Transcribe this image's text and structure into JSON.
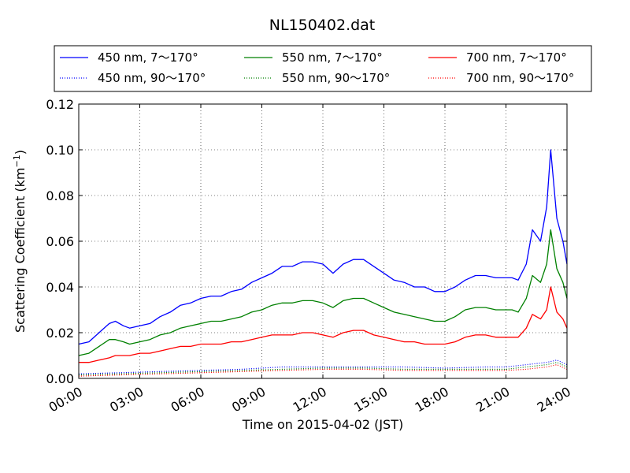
{
  "chart_data": {
    "type": "line",
    "title": "NL150402.dat",
    "xlabel": "Time on 2015-04-02 (JST)",
    "ylabel": "Scattering Coefficient (km",
    "ylabel_sup": "−1",
    "ylabel_end": ")",
    "xlim": [
      0,
      24
    ],
    "ylim": [
      0,
      0.12
    ],
    "x_unit": "hours",
    "x_ticks": [
      0,
      3,
      6,
      9,
      12,
      15,
      18,
      21,
      24
    ],
    "x_tick_labels": [
      "00:00",
      "03:00",
      "06:00",
      "09:00",
      "12:00",
      "15:00",
      "18:00",
      "21:00",
      "24:00"
    ],
    "y_ticks": [
      0,
      0.02,
      0.04,
      0.06,
      0.08,
      0.1,
      0.12
    ],
    "y_tick_labels": [
      "0.00",
      "0.02",
      "0.04",
      "0.06",
      "0.08",
      "0.10",
      "0.12"
    ],
    "grid": true,
    "legend_position": "top, above plot",
    "legend_columns": 3,
    "series": [
      {
        "name": "450 nm, 7～170°",
        "color": "#0000ff",
        "style": "solid",
        "x": [
          0,
          0.5,
          1,
          1.5,
          1.8,
          2.2,
          2.5,
          3,
          3.5,
          4,
          4.5,
          5,
          5.5,
          6,
          6.5,
          7,
          7.5,
          8,
          8.5,
          9,
          9.5,
          10,
          10.5,
          11,
          11.5,
          12,
          12.5,
          13,
          13.5,
          14,
          14.5,
          15,
          15.5,
          16,
          16.5,
          17,
          17.5,
          18,
          18.5,
          19,
          19.5,
          20,
          20.5,
          21,
          21.3,
          21.6,
          22,
          22.3,
          22.7,
          23,
          23.2,
          23.5,
          23.8,
          24
        ],
        "y": [
          0.015,
          0.016,
          0.02,
          0.024,
          0.025,
          0.023,
          0.022,
          0.023,
          0.024,
          0.027,
          0.029,
          0.032,
          0.033,
          0.035,
          0.036,
          0.036,
          0.038,
          0.039,
          0.042,
          0.044,
          0.046,
          0.049,
          0.049,
          0.051,
          0.051,
          0.05,
          0.046,
          0.05,
          0.052,
          0.052,
          0.049,
          0.046,
          0.043,
          0.042,
          0.04,
          0.04,
          0.038,
          0.038,
          0.04,
          0.043,
          0.045,
          0.045,
          0.044,
          0.044,
          0.044,
          0.043,
          0.05,
          0.065,
          0.06,
          0.075,
          0.1,
          0.07,
          0.06,
          0.05
        ]
      },
      {
        "name": "550 nm, 7～170°",
        "color": "#008000",
        "style": "solid",
        "x": [
          0,
          0.5,
          1,
          1.5,
          1.8,
          2.2,
          2.5,
          3,
          3.5,
          4,
          4.5,
          5,
          5.5,
          6,
          6.5,
          7,
          7.5,
          8,
          8.5,
          9,
          9.5,
          10,
          10.5,
          11,
          11.5,
          12,
          12.5,
          13,
          13.5,
          14,
          14.5,
          15,
          15.5,
          16,
          16.5,
          17,
          17.5,
          18,
          18.5,
          19,
          19.5,
          20,
          20.5,
          21,
          21.3,
          21.6,
          22,
          22.3,
          22.7,
          23,
          23.2,
          23.5,
          23.8,
          24
        ],
        "y": [
          0.01,
          0.011,
          0.014,
          0.017,
          0.017,
          0.016,
          0.015,
          0.016,
          0.017,
          0.019,
          0.02,
          0.022,
          0.023,
          0.024,
          0.025,
          0.025,
          0.026,
          0.027,
          0.029,
          0.03,
          0.032,
          0.033,
          0.033,
          0.034,
          0.034,
          0.033,
          0.031,
          0.034,
          0.035,
          0.035,
          0.033,
          0.031,
          0.029,
          0.028,
          0.027,
          0.026,
          0.025,
          0.025,
          0.027,
          0.03,
          0.031,
          0.031,
          0.03,
          0.03,
          0.03,
          0.029,
          0.035,
          0.045,
          0.042,
          0.05,
          0.065,
          0.048,
          0.042,
          0.035
        ]
      },
      {
        "name": "700 nm, 7～170°",
        "color": "#ff0000",
        "style": "solid",
        "x": [
          0,
          0.5,
          1,
          1.5,
          1.8,
          2.2,
          2.5,
          3,
          3.5,
          4,
          4.5,
          5,
          5.5,
          6,
          6.5,
          7,
          7.5,
          8,
          8.5,
          9,
          9.5,
          10,
          10.5,
          11,
          11.5,
          12,
          12.5,
          13,
          13.5,
          14,
          14.5,
          15,
          15.5,
          16,
          16.5,
          17,
          17.5,
          18,
          18.5,
          19,
          19.5,
          20,
          20.5,
          21,
          21.3,
          21.6,
          22,
          22.3,
          22.7,
          23,
          23.2,
          23.5,
          23.8,
          24
        ],
        "y": [
          0.007,
          0.007,
          0.008,
          0.009,
          0.01,
          0.01,
          0.01,
          0.011,
          0.011,
          0.012,
          0.013,
          0.014,
          0.014,
          0.015,
          0.015,
          0.015,
          0.016,
          0.016,
          0.017,
          0.018,
          0.019,
          0.019,
          0.019,
          0.02,
          0.02,
          0.019,
          0.018,
          0.02,
          0.021,
          0.021,
          0.019,
          0.018,
          0.017,
          0.016,
          0.016,
          0.015,
          0.015,
          0.015,
          0.016,
          0.018,
          0.019,
          0.019,
          0.018,
          0.018,
          0.018,
          0.018,
          0.022,
          0.028,
          0.026,
          0.03,
          0.04,
          0.029,
          0.026,
          0.022
        ]
      },
      {
        "name": "450 nm, 90～170°",
        "color": "#0000ff",
        "style": "dotted",
        "x": [
          0,
          2,
          4,
          6,
          8,
          10,
          12,
          14,
          16,
          18,
          20,
          21,
          22,
          23,
          23.5,
          24
        ],
        "y": [
          0.002,
          0.0025,
          0.003,
          0.0035,
          0.004,
          0.005,
          0.005,
          0.005,
          0.005,
          0.0045,
          0.005,
          0.005,
          0.006,
          0.007,
          0.008,
          0.006
        ]
      },
      {
        "name": "550 nm, 90～170°",
        "color": "#008000",
        "style": "dotted",
        "x": [
          0,
          2,
          4,
          6,
          8,
          10,
          12,
          14,
          16,
          18,
          20,
          21,
          22,
          23,
          23.5,
          24
        ],
        "y": [
          0.0015,
          0.002,
          0.0025,
          0.003,
          0.0035,
          0.004,
          0.0045,
          0.0045,
          0.004,
          0.004,
          0.004,
          0.004,
          0.005,
          0.006,
          0.007,
          0.005
        ]
      },
      {
        "name": "700 nm, 90～170°",
        "color": "#ff0000",
        "style": "dotted",
        "x": [
          0,
          2,
          4,
          6,
          8,
          10,
          12,
          14,
          16,
          18,
          20,
          21,
          22,
          23,
          23.5,
          24
        ],
        "y": [
          0.001,
          0.0015,
          0.002,
          0.0025,
          0.003,
          0.0035,
          0.004,
          0.004,
          0.0035,
          0.0035,
          0.0035,
          0.0035,
          0.004,
          0.005,
          0.006,
          0.004
        ]
      }
    ]
  }
}
